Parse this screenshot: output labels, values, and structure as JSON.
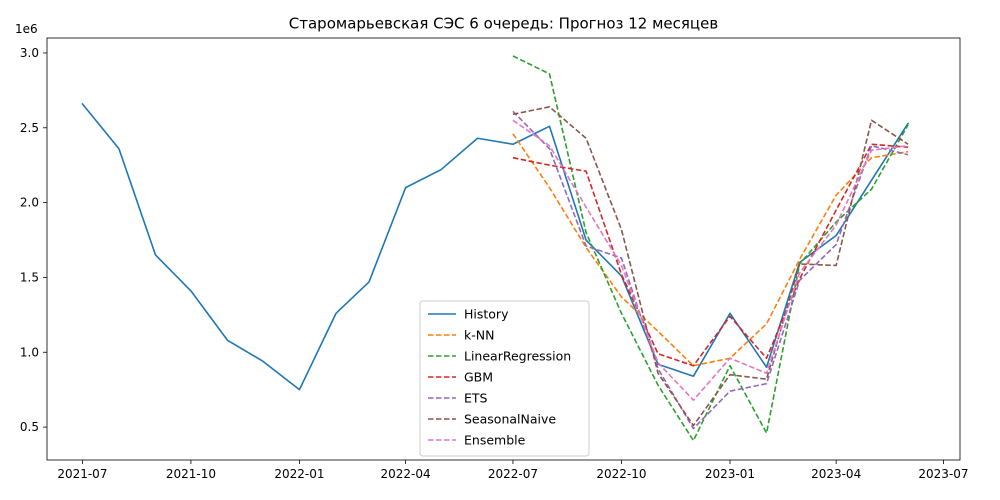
{
  "chart_data": {
    "type": "line",
    "title": "Старомарьевская СЭС 6 очередь: Прогноз 12 месяцев",
    "xlabel": "",
    "ylabel": "",
    "y_scale_label": "1e6",
    "xlim": [
      "2021-06-01",
      "2023-07-15"
    ],
    "ylim": [
      0.28,
      3.1
    ],
    "y_multiplier": 1000000,
    "x_ticks": [
      "2021-07-01",
      "2021-10-01",
      "2022-01-01",
      "2022-04-01",
      "2022-07-01",
      "2022-10-01",
      "2023-01-01",
      "2023-04-01",
      "2023-07-01"
    ],
    "x_tick_labels": [
      "2021-07",
      "2021-10",
      "2022-01",
      "2022-04",
      "2022-07",
      "2022-10",
      "2023-01",
      "2023-04",
      "2023-07"
    ],
    "y_ticks": [
      0.5,
      1.0,
      1.5,
      2.0,
      2.5,
      3.0
    ],
    "y_tick_labels": [
      "0.5",
      "1.0",
      "1.5",
      "2.0",
      "2.5",
      "3.0"
    ],
    "grid": false,
    "legend_position": "lower-center",
    "series": [
      {
        "name": "History",
        "color": "#1f77b4",
        "dash": "solid",
        "x": [
          "2021-07-01",
          "2021-08-01",
          "2021-09-01",
          "2021-10-01",
          "2021-11-01",
          "2021-12-01",
          "2022-01-01",
          "2022-02-01",
          "2022-03-01",
          "2022-04-01",
          "2022-05-01",
          "2022-06-01",
          "2022-07-01",
          "2022-08-01",
          "2022-09-01",
          "2022-10-01",
          "2022-11-01",
          "2022-12-01",
          "2023-01-01",
          "2023-02-01",
          "2023-03-01",
          "2023-04-01",
          "2023-05-01",
          "2023-06-01"
        ],
        "values": [
          2.66,
          2.36,
          1.65,
          1.41,
          1.08,
          0.94,
          0.75,
          1.26,
          1.47,
          2.1,
          2.22,
          2.43,
          2.39,
          2.51,
          1.75,
          1.51,
          0.92,
          0.84,
          1.26,
          0.9,
          1.6,
          1.78,
          2.15,
          2.53
        ]
      },
      {
        "name": "k-NN",
        "color": "#ff7f0e",
        "dash": "dashed",
        "x": [
          "2022-07-01",
          "2022-08-01",
          "2022-09-01",
          "2022-10-01",
          "2022-11-01",
          "2022-12-01",
          "2023-01-01",
          "2023-02-01",
          "2023-03-01",
          "2023-04-01",
          "2023-05-01",
          "2023-06-01"
        ],
        "values": [
          2.46,
          2.1,
          1.7,
          1.37,
          1.14,
          0.91,
          0.96,
          1.19,
          1.62,
          2.05,
          2.3,
          2.34
        ]
      },
      {
        "name": "LinearRegression",
        "color": "#2ca02c",
        "dash": "dashed",
        "x": [
          "2022-07-01",
          "2022-08-01",
          "2022-09-01",
          "2022-10-01",
          "2022-11-01",
          "2022-12-01",
          "2023-01-01",
          "2023-02-01",
          "2023-03-01",
          "2023-04-01",
          "2023-05-01",
          "2023-06-01"
        ],
        "values": [
          2.98,
          2.86,
          1.8,
          1.26,
          0.78,
          0.41,
          0.91,
          0.46,
          1.59,
          1.87,
          2.09,
          2.52
        ]
      },
      {
        "name": "GBM",
        "color": "#d62728",
        "dash": "dashed",
        "x": [
          "2022-07-01",
          "2022-08-01",
          "2022-09-01",
          "2022-10-01",
          "2022-11-01",
          "2022-12-01",
          "2023-01-01",
          "2023-02-01",
          "2023-03-01",
          "2023-04-01",
          "2023-05-01",
          "2023-06-01"
        ],
        "values": [
          2.3,
          2.25,
          2.21,
          1.52,
          0.99,
          0.91,
          1.24,
          0.96,
          1.49,
          1.95,
          2.39,
          2.37
        ]
      },
      {
        "name": "ETS",
        "color": "#9467bd",
        "dash": "dashed",
        "x": [
          "2022-07-01",
          "2022-08-01",
          "2022-09-01",
          "2022-10-01",
          "2022-11-01",
          "2022-12-01",
          "2023-01-01",
          "2023-02-01",
          "2023-03-01",
          "2023-04-01",
          "2023-05-01",
          "2023-06-01"
        ],
        "values": [
          2.61,
          2.36,
          1.71,
          1.63,
          0.89,
          0.49,
          0.74,
          0.79,
          1.48,
          1.72,
          2.38,
          2.32
        ]
      },
      {
        "name": "SeasonalNaive",
        "color": "#8c564b",
        "dash": "dashed",
        "x": [
          "2022-07-01",
          "2022-08-01",
          "2022-09-01",
          "2022-10-01",
          "2022-11-01",
          "2022-12-01",
          "2023-01-01",
          "2023-02-01",
          "2023-03-01",
          "2023-04-01",
          "2023-05-01",
          "2023-06-01"
        ],
        "values": [
          2.59,
          2.64,
          2.43,
          1.82,
          0.86,
          0.51,
          0.85,
          0.82,
          1.59,
          1.58,
          2.55,
          2.39
        ]
      },
      {
        "name": "Ensemble",
        "color": "#e377c2",
        "dash": "dashed",
        "x": [
          "2022-07-01",
          "2022-08-01",
          "2022-09-01",
          "2022-10-01",
          "2022-11-01",
          "2022-12-01",
          "2023-01-01",
          "2023-02-01",
          "2023-03-01",
          "2023-04-01",
          "2023-05-01",
          "2023-06-01"
        ],
        "values": [
          2.55,
          2.38,
          1.97,
          1.58,
          0.93,
          0.68,
          0.96,
          0.86,
          1.53,
          1.85,
          2.35,
          2.38
        ]
      }
    ]
  }
}
